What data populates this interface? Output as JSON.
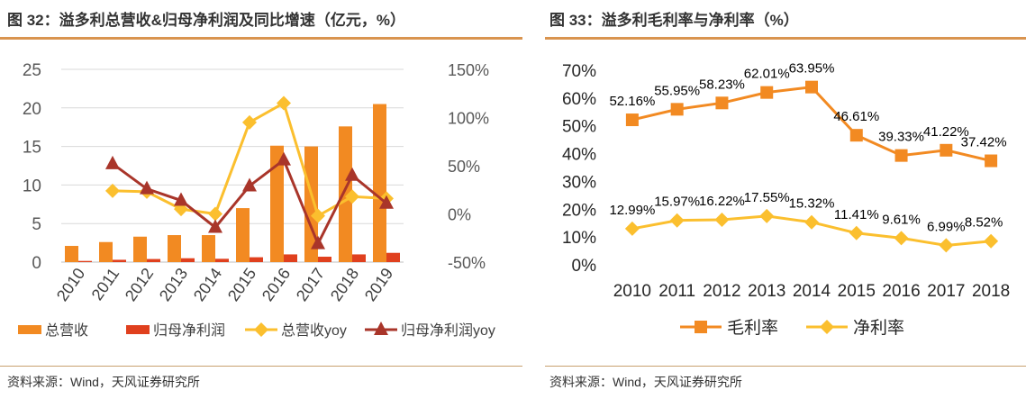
{
  "left": {
    "title": "图 32：溢多利总营收&归母净利润及同比增速（亿元，%）",
    "source": "资料来源：Wind，天风证券研究所"
  },
  "right": {
    "title": "图 33：溢多利毛利率与净利率（%）",
    "source": "资料来源：Wind，天风证券研究所"
  },
  "chart_data": [
    {
      "type": "bar",
      "categories": [
        "2010",
        "2011",
        "2012",
        "2013",
        "2014",
        "2015",
        "2016",
        "2017",
        "2018",
        "2019"
      ],
      "ylim": [
        0,
        25
      ],
      "yticks": [
        "0",
        "5",
        "10",
        "15",
        "20",
        "25"
      ],
      "y2lim": [
        -50,
        150
      ],
      "y2ticks": [
        "-50%",
        "0%",
        "50%",
        "100%",
        "150%"
      ],
      "grid": true,
      "legend": "bottom",
      "colors": {
        "rev": "#f28a22",
        "net": "#e0401e",
        "revyoy": "#fbbf2e",
        "netyoy": "#a9352a"
      },
      "series": [
        {
          "name": "总营收",
          "type": "bar",
          "axis": "left",
          "values": [
            2.1,
            2.6,
            3.3,
            3.5,
            3.5,
            7.0,
            15.1,
            15.0,
            17.6,
            20.5
          ]
        },
        {
          "name": "归母净利润",
          "type": "bar",
          "axis": "left",
          "values": [
            0.15,
            0.3,
            0.4,
            0.5,
            0.43,
            0.63,
            1.0,
            0.7,
            1.0,
            1.2
          ]
        },
        {
          "name": "总营收yoy",
          "type": "line",
          "axis": "right",
          "values": [
            null,
            24,
            23,
            5,
            0,
            95,
            115,
            -2,
            18,
            16
          ]
        },
        {
          "name": "归母净利润yoy",
          "type": "line",
          "axis": "right",
          "values": [
            null,
            52,
            26,
            14,
            -14,
            29,
            56,
            -31,
            40,
            11
          ]
        }
      ]
    },
    {
      "type": "line",
      "categories": [
        "2010",
        "2011",
        "2012",
        "2013",
        "2014",
        "2015",
        "2016",
        "2017",
        "2018"
      ],
      "ylim": [
        0,
        70
      ],
      "yticks": [
        "0%",
        "10%",
        "20%",
        "30%",
        "40%",
        "50%",
        "60%",
        "70%"
      ],
      "grid": false,
      "legend": "bottom",
      "colors": {
        "gross": "#f28a22",
        "net": "#fbbf2e"
      },
      "series": [
        {
          "name": "毛利率",
          "values": [
            52.16,
            55.95,
            58.23,
            62.01,
            63.95,
            46.61,
            39.33,
            41.22,
            37.42
          ],
          "labels": [
            "52.16%",
            "55.95%",
            "58.23%",
            "62.01%",
            "63.95%",
            "46.61%",
            "39.33%",
            "41.22%",
            "37.42%"
          ]
        },
        {
          "name": "净利率",
          "values": [
            12.99,
            15.97,
            16.22,
            17.55,
            15.32,
            11.41,
            9.61,
            6.99,
            8.52
          ],
          "labels": [
            "12.99%",
            "15.97%",
            "16.22%",
            "17.55%",
            "15.32%",
            "11.41%",
            "9.61%",
            "6.99%",
            "8.52%"
          ]
        }
      ]
    }
  ]
}
